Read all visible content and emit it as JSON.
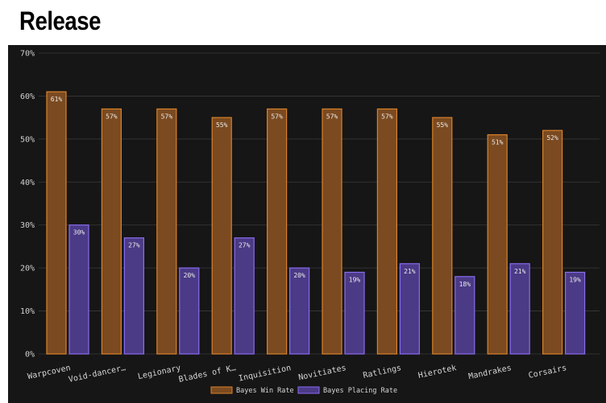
{
  "title": "Release",
  "colors": {
    "background": "#161616",
    "grid": "#3a3a3a",
    "win_fill": "#7b4a20",
    "win_stroke": "#d9822b",
    "placing_fill": "#4b3a86",
    "placing_stroke": "#8a6cf0"
  },
  "chart_data": {
    "type": "bar",
    "categories": [
      "Warpcoven",
      "Void-dancer…",
      "Legionary",
      "Blades of K…",
      "Inquisition",
      "Novitiates",
      "Ratlings",
      "Hierotek",
      "Mandrakes",
      "Corsairs"
    ],
    "series": [
      {
        "name": "Bayes Win Rate",
        "values": [
          61,
          57,
          57,
          55,
          57,
          57,
          57,
          55,
          51,
          52
        ],
        "labels": [
          "61%",
          "57%",
          "57%",
          "55%",
          "57%",
          "57%",
          "57%",
          "55%",
          "51%",
          "52%"
        ]
      },
      {
        "name": "Bayes Placing Rate",
        "values": [
          30,
          27,
          20,
          27,
          20,
          19,
          21,
          18,
          21,
          19
        ],
        "labels": [
          "30%",
          "27%",
          "20%",
          "27%",
          "20%",
          "19%",
          "21%",
          "18%",
          "21%",
          "19%"
        ]
      }
    ],
    "ylim": [
      0,
      70
    ],
    "yticks": [
      "0%",
      "10%",
      "20%",
      "30%",
      "40%",
      "50%",
      "60%",
      "70%"
    ],
    "grid": true,
    "legend_position": "bottom-center"
  }
}
